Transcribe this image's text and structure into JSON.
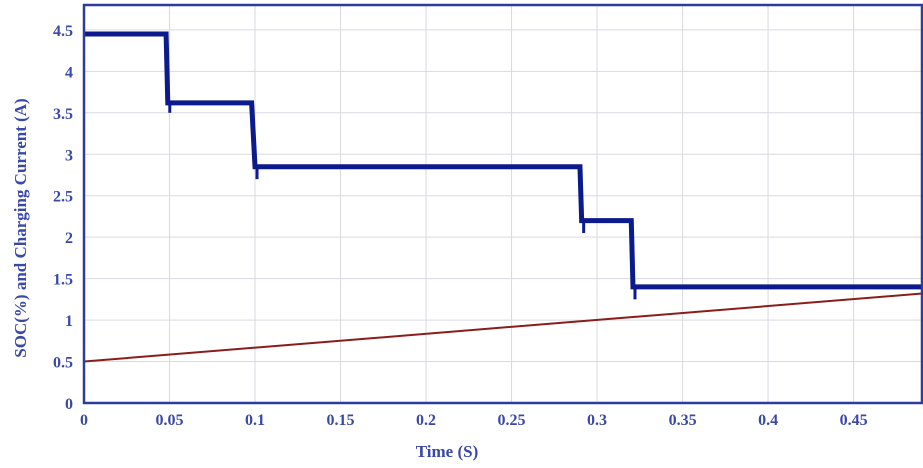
{
  "chart_data": {
    "type": "line",
    "xlabel": "Time (S)",
    "ylabel": "SOC(%) and Charging Current (A)",
    "xlim": [
      0,
      0.49
    ],
    "ylim": [
      0,
      4.8
    ],
    "x_ticks": [
      0,
      0.05,
      0.1,
      0.15,
      0.2,
      0.25,
      0.3,
      0.35,
      0.4,
      0.45
    ],
    "x_tick_labels": [
      "0",
      "0.05",
      "0.1",
      "0.15",
      "0.2",
      "0.25",
      "0.3",
      "0.35",
      "0.4",
      "0.45"
    ],
    "y_ticks": [
      0,
      0.5,
      1,
      1.5,
      2,
      2.5,
      3,
      3.5,
      4,
      4.5
    ],
    "y_tick_labels": [
      "0",
      "0.5",
      "1",
      "1.5",
      "2",
      "2.5",
      "3",
      "3.5",
      "4",
      "4.5"
    ],
    "grid": true,
    "series": [
      {
        "color": "#0b1a8c",
        "style": "step",
        "x": [
          0,
          0.048,
          0.049,
          0.098,
          0.1,
          0.29,
          0.291,
          0.32,
          0.321,
          0.49
        ],
        "y": [
          4.45,
          4.45,
          3.62,
          3.62,
          2.85,
          2.85,
          2.2,
          2.2,
          1.4,
          1.4
        ],
        "dips": [
          {
            "x": 0.049,
            "y": 3.5
          },
          {
            "x": 0.1,
            "y": 2.7
          },
          {
            "x": 0.291,
            "y": 2.05
          },
          {
            "x": 0.321,
            "y": 1.25
          }
        ]
      },
      {
        "color": "#8b1c1c",
        "style": "line",
        "x": [
          0,
          0.49
        ],
        "y": [
          0.5,
          1.32
        ]
      }
    ]
  }
}
